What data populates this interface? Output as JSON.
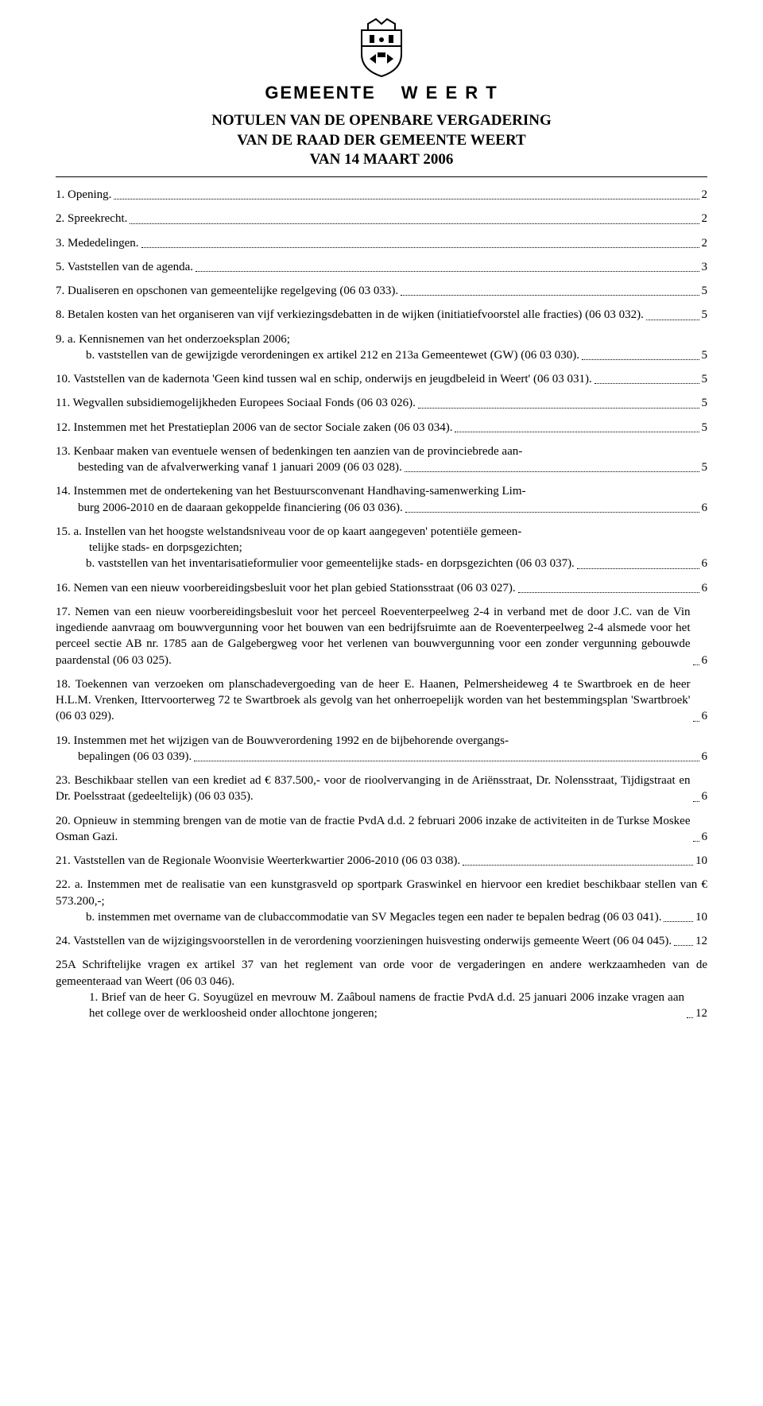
{
  "brand": {
    "left": "GEMEENTE",
    "right": "W E E R T"
  },
  "title": {
    "line1": "NOTULEN VAN DE OPENBARE VERGADERING",
    "line2": "VAN DE RAAD DER GEMEENTE WEERT",
    "line3": "VAN 14 MAART 2006"
  },
  "entries": [
    {
      "lines": [
        "1. Opening."
      ],
      "page": "2"
    },
    {
      "lines": [
        "2. Spreekrecht."
      ],
      "page": "2"
    },
    {
      "lines": [
        "3. Mededelingen."
      ],
      "page": "2"
    },
    {
      "lines": [
        "5. Vaststellen van de agenda."
      ],
      "page": "3"
    },
    {
      "lines": [
        "7. Dualiseren en opschonen van gemeentelijke regelgeving (06 03 033)."
      ],
      "page": "5"
    },
    {
      "lines": [
        "8. Betalen kosten van het organiseren van vijf verkiezingsdebatten in de wijken (initiatiefvoorstel alle fracties) (06 03 032)."
      ],
      "indent_from": 1,
      "page": "5"
    },
    {
      "lines": [
        "9. a. Kennisnemen van het onderzoeksplan 2006;"
      ],
      "subs": [
        {
          "lines": [
            "b. vaststellen van de gewijzigde verordeningen ex artikel 212 en 213a Gemeentewet (GW) (06 03 030)."
          ],
          "page": "5"
        }
      ]
    },
    {
      "lines": [
        "10. Vaststellen van de kadernota 'Geen kind tussen wal en schip, onderwijs en jeugdbeleid in Weert' (06 03 031)."
      ],
      "indent_from": 1,
      "page": "5"
    },
    {
      "lines": [
        "11. Wegvallen subsidiemogelijkheden Europees Sociaal Fonds (06 03 026)."
      ],
      "page": "5"
    },
    {
      "lines": [
        "12. Instemmen met het Prestatieplan 2006 van de sector Sociale zaken (06 03 034)."
      ],
      "page": "5"
    },
    {
      "lines": [
        "13. Kenbaar maken van eventuele wensen of bedenkingen ten aanzien van de provinciebrede aan-",
        "besteding van de afvalverwerking vanaf 1 januari 2009 (06 03 028)."
      ],
      "indent_from": 1,
      "page": "5"
    },
    {
      "lines": [
        "14. Instemmen met de ondertekening van het Bestuursconvenant Handhaving-samenwerking Lim-",
        "burg 2006-2010 en de daaraan gekoppelde financiering (06 03 036)."
      ],
      "indent_from": 1,
      "page": "6"
    },
    {
      "lines": [
        "15. a. Instellen van het hoogste welstandsniveau voor de op kaart aangegeven' potentiële gemeen-",
        "telijke stads- en dorpsgezichten;"
      ],
      "indent_from": 1,
      "cont_nodots": true,
      "subs": [
        {
          "lines": [
            "b. vaststellen van het inventarisatieformulier voor gemeentelijke stads- en dorpsgezichten (06 03 037)."
          ],
          "page": "6"
        }
      ]
    },
    {
      "lines": [
        "16. Nemen van een nieuw voorbereidingsbesluit voor het plan gebied Stationsstraat (06 03 027)."
      ],
      "page": "6"
    },
    {
      "lines": [
        "17. Nemen van een nieuw voorbereidingsbesluit voor het perceel Roeventerpeelweg 2-4 in verband met de door J.C. van de Vin ingediende aanvraag om bouwvergunning voor het bouwen van een bedrijfsruimte aan de Roeventerpeelweg 2-4 alsmede voor het perceel sectie AB nr. 1785 aan de Galgebergweg voor het verlenen van bouwvergunning voor een zonder vergunning gebouwde paardenstal (06 03 025)."
      ],
      "indent_from": 1,
      "page": "6"
    },
    {
      "lines": [
        "18. Toekennen van verzoeken om planschadevergoeding van de heer E. Haanen, Pelmersheideweg 4 te Swartbroek en de heer H.L.M. Vrenken, Ittervoorterweg 72 te Swartbroek als gevolg van het onherroepelijk worden van het bestemmingsplan 'Swartbroek' (06 03 029)."
      ],
      "indent_from": 1,
      "page": "6"
    },
    {
      "lines": [
        "19. Instemmen met het wijzigen van de Bouwverordening 1992 en de bijbehorende overgangs-",
        "bepalingen (06 03 039)."
      ],
      "indent_from": 1,
      "page": "6"
    },
    {
      "lines": [
        "23. Beschikbaar stellen van een krediet ad € 837.500,- voor de rioolvervanging in de Ariënsstraat, Dr. Nolensstraat, Tijdigstraat en Dr. Poelsstraat (gedeeltelijk) (06 03 035)."
      ],
      "indent_from": 1,
      "page": "6"
    },
    {
      "lines": [
        "20. Opnieuw in stemming brengen van de motie van de fractie PvdA d.d. 2 februari 2006 inzake de activiteiten in de Turkse Moskee Osman Gazi."
      ],
      "indent_from": 1,
      "page": "6"
    },
    {
      "lines": [
        "21. Vaststellen van de Regionale Woonvisie Weerterkwartier 2006-2010 (06 03 038)."
      ],
      "page": "10"
    },
    {
      "lines": [
        "22. a. Instemmen met de realisatie van een kunstgrasveld op sportpark Graswinkel en hiervoor een krediet beschikbaar stellen van € 573.200,-;"
      ],
      "indent_from": 1,
      "cont_nodots": true,
      "subs": [
        {
          "lines": [
            "b. instemmen met overname van de clubaccommodatie van SV Megacles tegen een nader te bepalen bedrag (06 03 041)."
          ],
          "page": "10"
        }
      ]
    },
    {
      "lines": [
        "24. Vaststellen van de wijzigingsvoorstellen in de verordening voorzieningen huisvesting onderwijs gemeente Weert (06 04 045)."
      ],
      "indent_from": 1,
      "page": "12"
    },
    {
      "lines": [
        "25A Schriftelijke vragen ex artikel 37 van het reglement van orde voor de vergaderingen en andere werkzaamheden van de gemeenteraad van Weert (06 03 046)."
      ],
      "indent_from": 1,
      "cont_nodots": true,
      "subs": [
        {
          "lines": [
            "1. Brief van de heer G. Soyugüzel en mevrouw M. Zaâboul namens de fractie PvdA d.d. 25 januari 2006 inzake vragen aan het college over de werkloosheid onder allochtone jongeren;"
          ],
          "page": "12",
          "sub_indent": 42
        }
      ]
    }
  ]
}
